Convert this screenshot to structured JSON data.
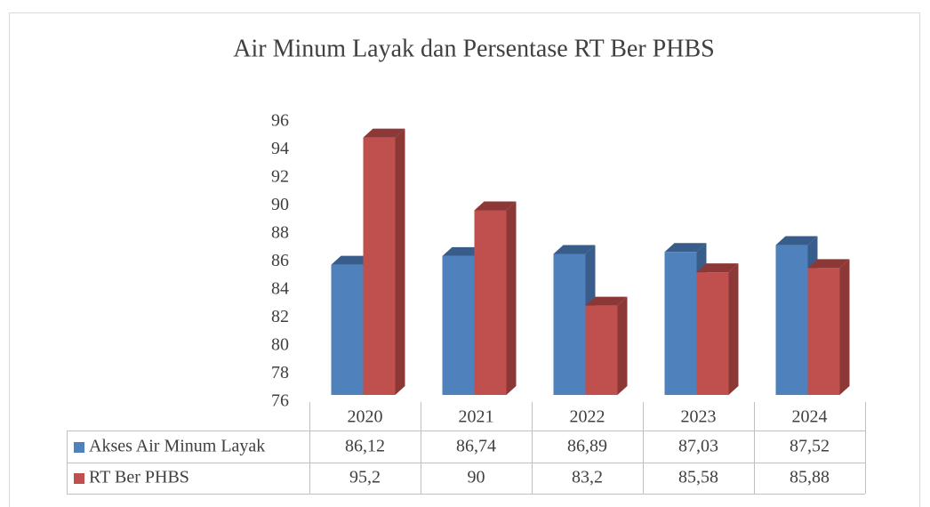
{
  "chart_data": {
    "type": "bar3d",
    "title": "Air Minum Layak dan Persentase RT Ber PHBS",
    "categories": [
      "2020",
      "2021",
      "2022",
      "2023",
      "2024"
    ],
    "series": [
      {
        "name": "Akses Air Minum Layak",
        "color": "#4f81bd",
        "side": "#385d8a",
        "values": [
          86.12,
          86.74,
          86.89,
          87.03,
          87.52
        ],
        "value_labels": [
          "86,12",
          "86,74",
          "86,89",
          "87,03",
          "87,52"
        ]
      },
      {
        "name": "RT Ber PHBS",
        "color": "#c0504d",
        "side": "#8c3836",
        "values": [
          95.2,
          90,
          83.2,
          85.58,
          85.88
        ],
        "value_labels": [
          "95,2",
          "90",
          "83,2",
          "85,58",
          "85,88"
        ]
      }
    ],
    "ylim": [
      76,
      96
    ],
    "yticks": [
      76,
      78,
      80,
      82,
      84,
      86,
      88,
      90,
      92,
      94,
      96
    ],
    "grid": false
  }
}
